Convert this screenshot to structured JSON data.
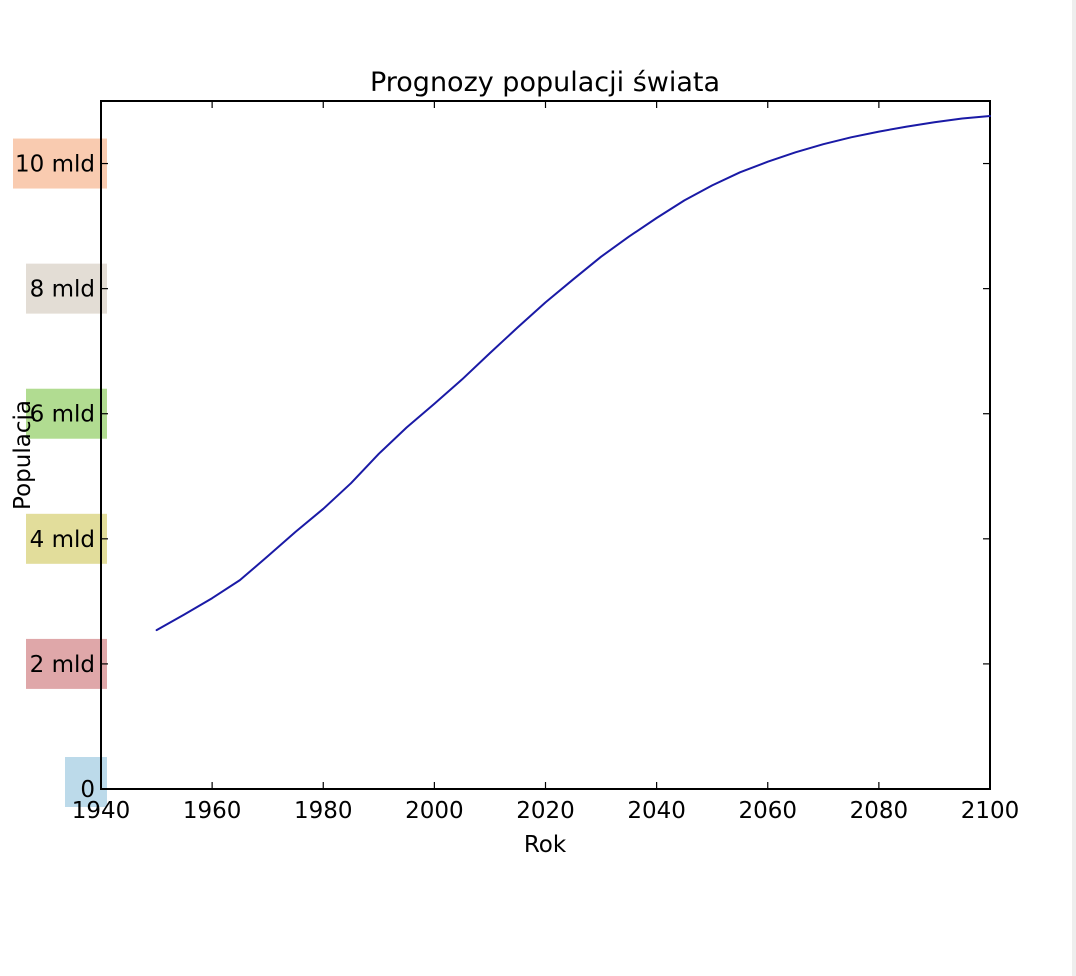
{
  "chart_data": {
    "type": "line",
    "title": "Prognozy populacji świata",
    "xlabel": "Rok",
    "ylabel": "Populacja",
    "xlim": [
      1940,
      2100
    ],
    "ylim": [
      0,
      11
    ],
    "x_ticks": [
      1940,
      1960,
      1980,
      2000,
      2020,
      2040,
      2060,
      2080,
      2100
    ],
    "x_tick_labels": [
      "1940",
      "1960",
      "1980",
      "2000",
      "2020",
      "2040",
      "2060",
      "2080",
      "2100"
    ],
    "y_ticks": [
      0,
      2,
      4,
      6,
      8,
      10
    ],
    "y_tick_labels": [
      "0",
      "2 mld",
      "4 mld",
      "6 mld",
      "8 mld",
      "10 mld"
    ],
    "y_tick_colors": [
      "#a6cee3",
      "#d48a8c",
      "#d8d17a",
      "#97d06c",
      "#d9d1c7",
      "#f7b995"
    ],
    "line_color": "#1a1aa6",
    "grid": false,
    "series": [
      {
        "x": [
          1950,
          1955,
          1960,
          1965,
          1970,
          1975,
          1980,
          1985,
          1990,
          1995,
          2000,
          2005,
          2010,
          2015,
          2020,
          2025,
          2030,
          2035,
          2040,
          2045,
          2050,
          2055,
          2060,
          2065,
          2070,
          2075,
          2080,
          2085,
          2090,
          2095,
          2100
        ],
        "values": [
          2.54,
          2.79,
          3.05,
          3.34,
          3.72,
          4.11,
          4.48,
          4.89,
          5.36,
          5.78,
          6.16,
          6.55,
          6.97,
          7.38,
          7.78,
          8.15,
          8.51,
          8.83,
          9.13,
          9.41,
          9.65,
          9.86,
          10.03,
          10.18,
          10.31,
          10.42,
          10.51,
          10.59,
          10.66,
          10.72,
          10.76
        ]
      }
    ]
  }
}
